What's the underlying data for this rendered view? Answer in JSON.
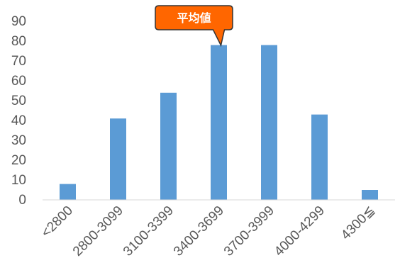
{
  "chart_data": {
    "type": "bar",
    "title": "",
    "xlabel": "",
    "ylabel": "",
    "categories": [
      "<2800",
      "2800-3099",
      "3100-3399",
      "3400-3699",
      "3700-3999",
      "4000-4299",
      "4300≦"
    ],
    "values": [
      8,
      41,
      54,
      78,
      78,
      43,
      5
    ],
    "ylim": [
      0,
      90
    ],
    "yticks": [
      0,
      10,
      20,
      30,
      40,
      50,
      60,
      70,
      80,
      90
    ],
    "grid": false,
    "legend": "none",
    "bar_color": "#5B9BD5",
    "annotation": {
      "text": "平均値",
      "category": "3400-3699",
      "fill": "#FF6600",
      "border": "#333333"
    }
  }
}
